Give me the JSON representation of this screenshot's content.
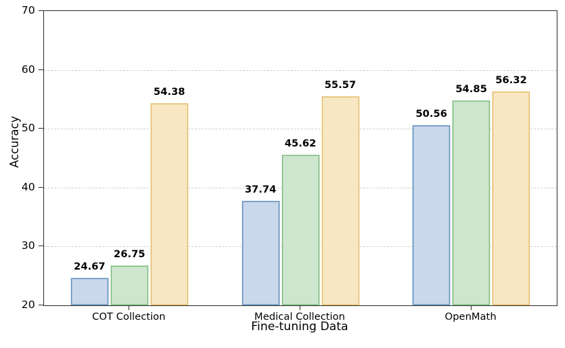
{
  "chart_data": {
    "type": "bar",
    "title": "",
    "xlabel": "Fine-tuning Data",
    "ylabel": "Accuracy",
    "ylim": [
      20,
      70
    ],
    "yticks": [
      20,
      30,
      40,
      50,
      60,
      70
    ],
    "categories": [
      "COT Collection",
      "Medical Collection",
      "OpenMath"
    ],
    "series": [
      {
        "name": "series-blue",
        "fill": "#c9d8ea",
        "border": "#7da2c9",
        "values": [
          24.67,
          37.74,
          50.56
        ]
      },
      {
        "name": "series-green",
        "fill": "#cfe6ce",
        "border": "#95c795",
        "values": [
          26.75,
          45.62,
          54.85
        ]
      },
      {
        "name": "series-orange",
        "fill": "#f7e8c3",
        "border": "#e9c983",
        "values": [
          54.38,
          55.57,
          56.32
        ]
      }
    ],
    "value_labels": [
      "24.67",
      "26.75",
      "54.38",
      "37.74",
      "45.62",
      "55.57",
      "50.56",
      "54.85",
      "56.32"
    ],
    "grid": "horizontal-dashed",
    "legend": "none",
    "colors": {
      "spine": "#2a2a2a",
      "gridline": "#cfcfcf",
      "text": "#000000"
    }
  }
}
